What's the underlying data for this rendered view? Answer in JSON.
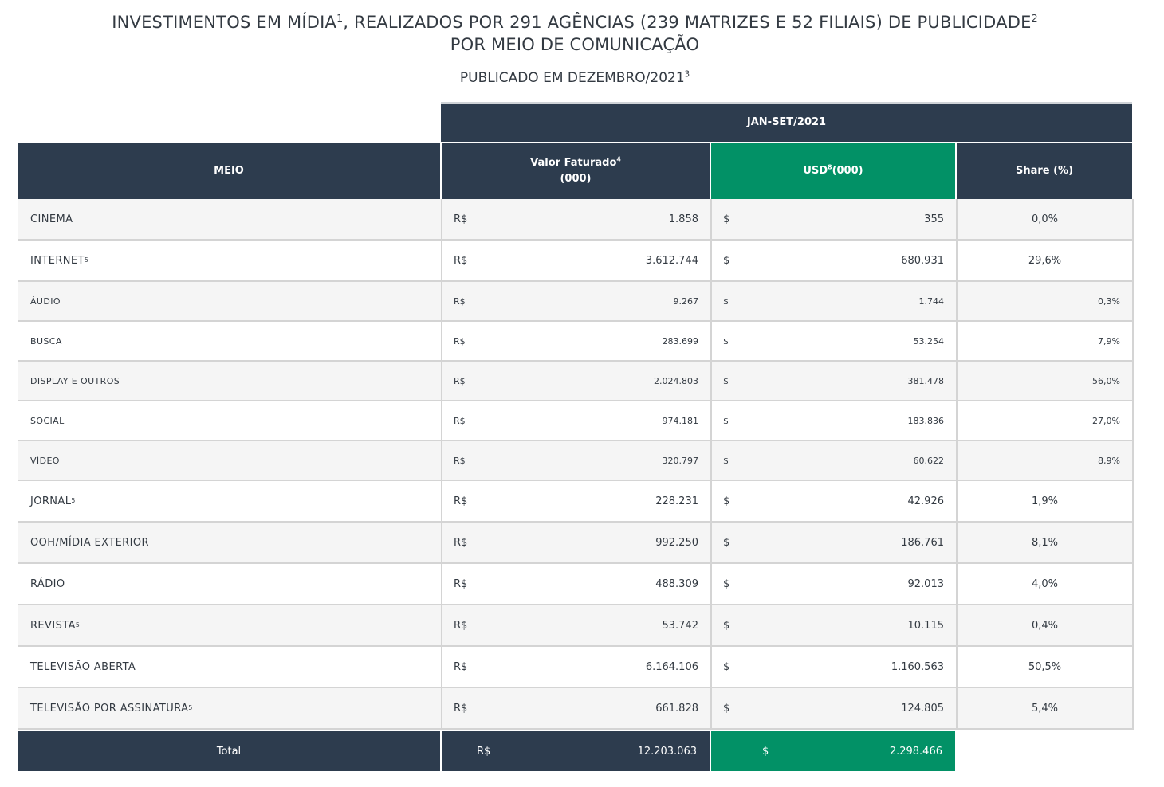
{
  "title": {
    "line1_text": "INVESTIMENTOS EM MÍDIA",
    "line1_sup1": "1",
    "line1_mid": ", REALIZADOS POR 291 AGÊNCIAS (239 MATRIZES E 52 FILIAIS) DE PUBLICIDADE",
    "line1_sup2": "2",
    "line2": "POR MEIO DE COMUNICAÇÃO",
    "subtitle_text": "PUBLICADO EM DEZEMBRO/2021",
    "subtitle_sup": "3"
  },
  "header": {
    "period": "JAN-SET/2021",
    "meio": "MEIO",
    "valor_label": "Valor Faturado",
    "valor_sup": "4",
    "valor_unit": "(000)",
    "usd_label": "USD",
    "usd_sup": "8",
    "usd_unit": "(000)",
    "share": "Share (%)"
  },
  "currency": {
    "brl": "R$",
    "usd": "$"
  },
  "rows": [
    {
      "meio": "CINEMA",
      "sup": "",
      "valor": "1.858",
      "usd": "355",
      "share": "0,0%",
      "level": "main"
    },
    {
      "meio": "INTERNET",
      "sup": "5",
      "valor": "3.612.744",
      "usd": "680.931",
      "share": "29,6%",
      "level": "main"
    },
    {
      "meio": "ÁUDIO",
      "sup": "",
      "valor": "9.267",
      "usd": "1.744",
      "share": "0,3%",
      "level": "sub"
    },
    {
      "meio": "BUSCA",
      "sup": "",
      "valor": "283.699",
      "usd": "53.254",
      "share": "7,9%",
      "level": "sub"
    },
    {
      "meio": "DISPLAY E OUTROS",
      "sup": "",
      "valor": "2.024.803",
      "usd": "381.478",
      "share": "56,0%",
      "level": "sub"
    },
    {
      "meio": "SOCIAL",
      "sup": "",
      "valor": "974.181",
      "usd": "183.836",
      "share": "27,0%",
      "level": "sub"
    },
    {
      "meio": "VÍDEO",
      "sup": "",
      "valor": "320.797",
      "usd": "60.622",
      "share": "8,9%",
      "level": "sub"
    },
    {
      "meio": "JORNAL",
      "sup": "5",
      "valor": "228.231",
      "usd": "42.926",
      "share": "1,9%",
      "level": "main"
    },
    {
      "meio": "OOH/MÍDIA EXTERIOR",
      "sup": "",
      "valor": "992.250",
      "usd": "186.761",
      "share": "8,1%",
      "level": "main"
    },
    {
      "meio": "RÁDIO",
      "sup": "",
      "valor": "488.309",
      "usd": "92.013",
      "share": "4,0%",
      "level": "main"
    },
    {
      "meio": "REVISTA",
      "sup": "5",
      "valor": "53.742",
      "usd": "10.115",
      "share": "0,4%",
      "level": "main"
    },
    {
      "meio": "TELEVISÃO ABERTA",
      "sup": "",
      "valor": "6.164.106",
      "usd": "1.160.563",
      "share": "50,5%",
      "level": "main"
    },
    {
      "meio": "TELEVISÃO POR ASSINATURA",
      "sup": "5",
      "valor": "661.828",
      "usd": "124.805",
      "share": "5,4%",
      "level": "main"
    }
  ],
  "total": {
    "label": "Total",
    "valor": "12.203.063",
    "usd": "2.298.466"
  },
  "colors": {
    "header_dark": "#2d3c4e",
    "header_green": "#029166",
    "row_alt": "#f5f5f5",
    "border": "#d4d4d4"
  }
}
